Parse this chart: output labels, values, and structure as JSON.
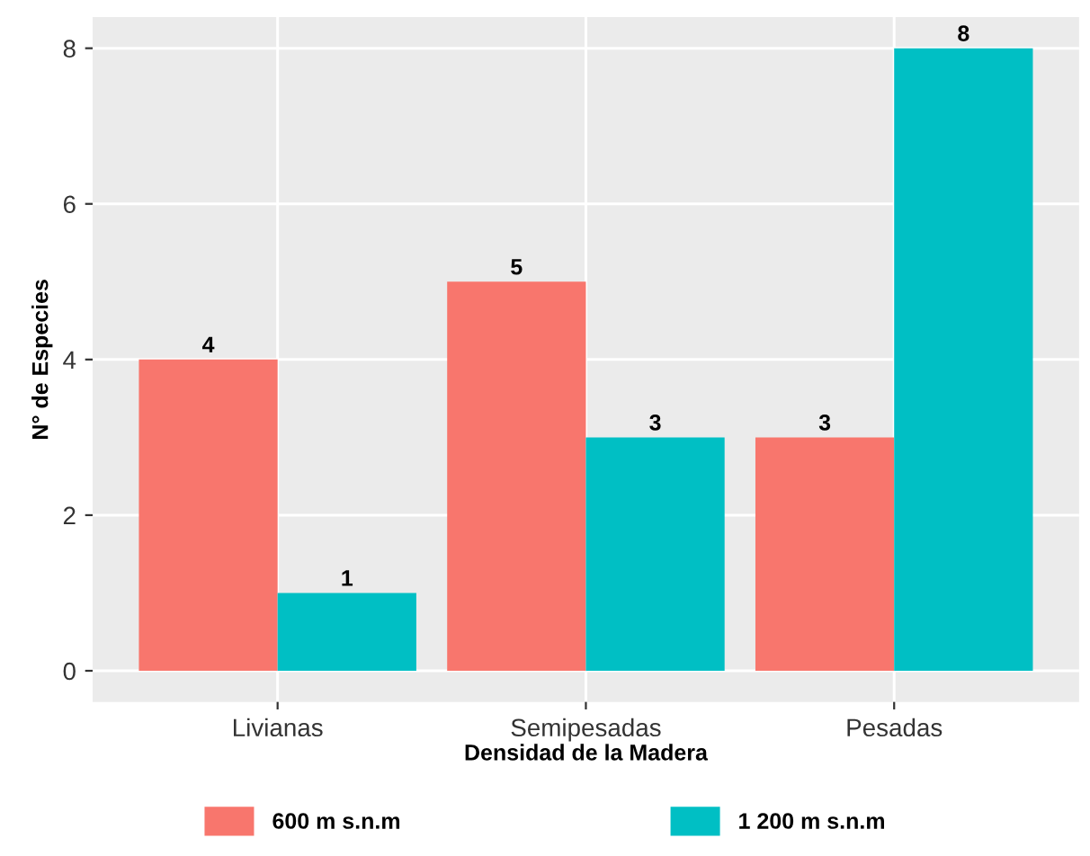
{
  "chart_data": {
    "type": "bar",
    "xlabel": "Densidad de la Madera",
    "ylabel": "N° de Especies",
    "categories": [
      "Livianas",
      "Semipesadas",
      "Pesadas"
    ],
    "series": [
      {
        "name": "600 m s.n.m",
        "color": "#f8766d",
        "values": [
          4,
          5,
          3
        ]
      },
      {
        "name": "1 200 m s.n.m",
        "color": "#00bfc4",
        "values": [
          1,
          3,
          8
        ]
      }
    ],
    "ylim": [
      -0.4,
      8.4
    ],
    "yticks": [
      0,
      2,
      4,
      6,
      8
    ],
    "grid": true,
    "legend": "bottom",
    "data_labels": true
  }
}
